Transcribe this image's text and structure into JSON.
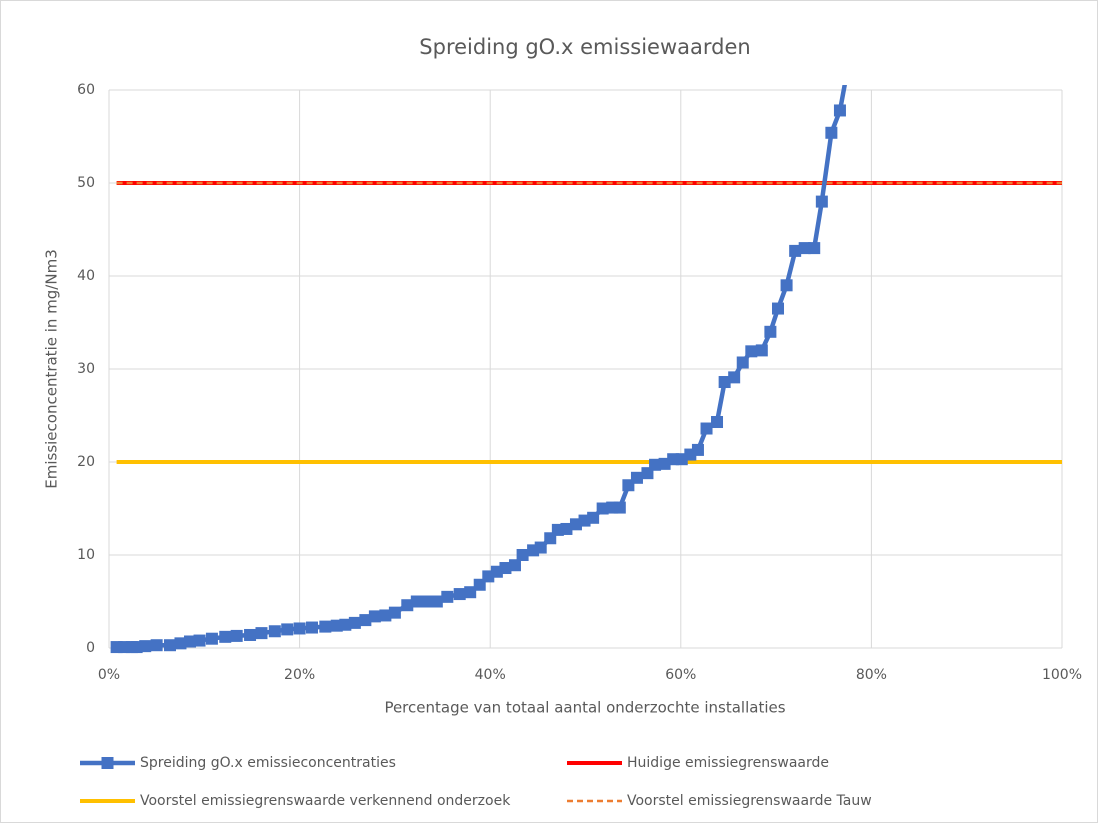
{
  "chart_data": {
    "type": "line",
    "title": "Spreiding gO.x emissiewaarden",
    "x_label": "Percentage van totaal aantal onderzochte installaties",
    "y_label": "Emissieconcentratie in mg/Nm3",
    "xlim": [
      0,
      100
    ],
    "ylim": [
      0,
      60
    ],
    "xticks": [
      {
        "value": 0,
        "label": "0%"
      },
      {
        "value": 20,
        "label": "20%"
      },
      {
        "value": 40,
        "label": "40%"
      },
      {
        "value": 60,
        "label": "60%"
      },
      {
        "value": 80,
        "label": "80%"
      },
      {
        "value": 100,
        "label": "100%"
      }
    ],
    "yticks": [
      0,
      10,
      20,
      30,
      40,
      50,
      60
    ],
    "grid": true,
    "legend": "bottom",
    "series": [
      {
        "name": "Spreiding gO.x emissieconcentraties",
        "color": "#4472c4",
        "marker": "square",
        "x": [
          0.8,
          1.6,
          2.4,
          2.9,
          3.8,
          5.0,
          6.4,
          7.5,
          8.5,
          9.5,
          10.8,
          12.2,
          13.4,
          14.8,
          16.0,
          17.4,
          18.7,
          20.0,
          21.3,
          22.7,
          23.9,
          24.8,
          25.8,
          26.9,
          27.9,
          29.0,
          30.0,
          31.3,
          32.3,
          33.4,
          34.4,
          35.5,
          36.8,
          37.9,
          38.9,
          39.8,
          40.7,
          41.6,
          42.6,
          43.4,
          44.5,
          45.3,
          46.3,
          47.1,
          48.0,
          49.0,
          49.9,
          50.8,
          51.8,
          52.8,
          53.6,
          54.5,
          55.4,
          56.5,
          57.3,
          58.3,
          59.2,
          60.1,
          61.0,
          61.8,
          62.7,
          63.8,
          64.6,
          65.6,
          66.5,
          67.4,
          68.5,
          69.4,
          70.2,
          71.1,
          72.0,
          73.0,
          74.0,
          74.8,
          75.8,
          76.7,
          78.0
        ],
        "values": [
          0.1,
          0.1,
          0.1,
          0.1,
          0.2,
          0.3,
          0.3,
          0.5,
          0.7,
          0.8,
          1.0,
          1.2,
          1.3,
          1.4,
          1.6,
          1.8,
          2.0,
          2.1,
          2.2,
          2.3,
          2.4,
          2.5,
          2.7,
          3.0,
          3.4,
          3.5,
          3.8,
          4.6,
          5.0,
          5.0,
          5.0,
          5.5,
          5.8,
          6.0,
          6.8,
          7.7,
          8.2,
          8.6,
          8.9,
          10.0,
          10.5,
          10.8,
          11.8,
          12.7,
          12.8,
          13.3,
          13.7,
          14.0,
          15.0,
          15.1,
          15.1,
          17.5,
          18.3,
          18.8,
          19.7,
          19.8,
          20.3,
          20.3,
          20.8,
          21.3,
          23.6,
          24.3,
          28.6,
          29.1,
          30.7,
          31.9,
          32.0,
          34.0,
          36.5,
          39.0,
          42.7,
          43.0,
          43.0,
          48.0,
          55.4,
          57.8,
          65.0
        ]
      },
      {
        "name": "Huidige emissiegrenswaarde",
        "color": "#ff0000",
        "x": [
          0.8,
          100
        ],
        "values": [
          50,
          50
        ]
      },
      {
        "name": "Voorstel emissiegrenswaarde verkennend onderzoek",
        "color": "#ffc000",
        "x": [
          0.8,
          100
        ],
        "values": [
          20,
          20
        ]
      },
      {
        "name": "Voorstel emissiegrenswaarde Tauw",
        "color": "#ed7d31",
        "line_style": "dashed",
        "x": [
          0.8,
          100
        ],
        "values": [
          50,
          50
        ]
      }
    ]
  }
}
